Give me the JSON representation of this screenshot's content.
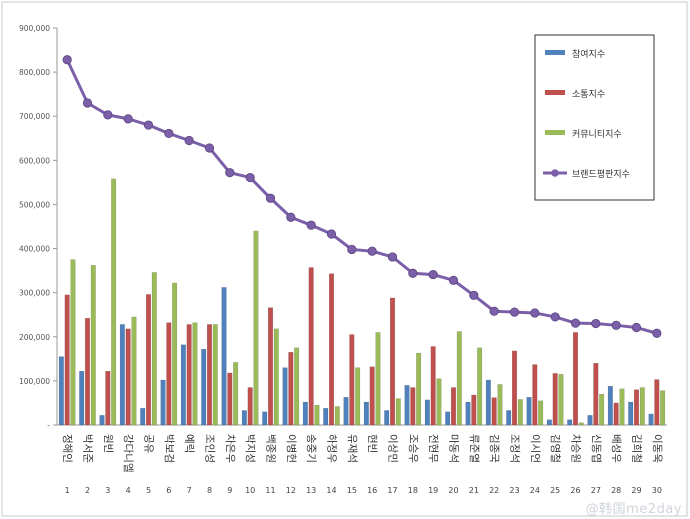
{
  "chart_data": {
    "type": "bar",
    "categories": [
      "정해인",
      "박서준",
      "원빈",
      "강다니엘",
      "공유",
      "박보검",
      "예릭",
      "조인성",
      "차은우",
      "박지성",
      "백종원",
      "이병헌",
      "송중기",
      "하정우",
      "유재석",
      "현빈",
      "이상민",
      "조승우",
      "전현무",
      "마동석",
      "류준열",
      "김종국",
      "조정석",
      "이시언",
      "김영철",
      "차승원",
      "신동엽",
      "배성우",
      "김희철",
      "이동욱"
    ],
    "ranks": [
      "1",
      "2",
      "3",
      "4",
      "5",
      "6",
      "7",
      "8",
      "9",
      "10",
      "11",
      "12",
      "13",
      "14",
      "15",
      "16",
      "17",
      "18",
      "19",
      "20",
      "21",
      "22",
      "23",
      "24",
      "25",
      "26",
      "27",
      "28",
      "29",
      "30"
    ],
    "ylim": [
      0,
      900000
    ],
    "yticks": [
      "-",
      "100,000",
      "200,000",
      "300,000",
      "400,000",
      "500,000",
      "600,000",
      "700,000",
      "800,000",
      "900,000"
    ],
    "series": [
      {
        "name": "참여지수",
        "kind": "bar",
        "color": "#4f81bd",
        "values": [
          155000,
          122000,
          22000,
          228000,
          38000,
          102000,
          182000,
          172000,
          312000,
          33000,
          30000,
          130000,
          52000,
          38000,
          63000,
          52000,
          33000,
          90000,
          57000,
          30000,
          52000,
          102000,
          33000,
          63000,
          12000,
          12000,
          22000,
          88000,
          52000,
          25000
        ]
      },
      {
        "name": "소통지수",
        "kind": "bar",
        "color": "#c0504d",
        "values": [
          295000,
          242000,
          122000,
          218000,
          296000,
          232000,
          228000,
          228000,
          118000,
          85000,
          266000,
          165000,
          357000,
          343000,
          205000,
          132000,
          288000,
          85000,
          178000,
          85000,
          68000,
          62000,
          168000,
          137000,
          117000,
          210000,
          140000,
          50000,
          80000,
          103000
        ]
      },
      {
        "name": "커뮤니티지수",
        "kind": "bar",
        "color": "#9bbb59",
        "values": [
          375000,
          362000,
          558000,
          245000,
          346000,
          322000,
          232000,
          228000,
          142000,
          440000,
          218000,
          175000,
          45000,
          42000,
          130000,
          210000,
          60000,
          163000,
          105000,
          212000,
          175000,
          92000,
          58000,
          55000,
          115000,
          5000,
          70000,
          82000,
          85000,
          78000
        ]
      },
      {
        "name": "브랜드평판지수",
        "kind": "line",
        "color": "#7b5fa8",
        "values": [
          828000,
          730000,
          703000,
          694000,
          680000,
          661000,
          645000,
          628000,
          572000,
          561000,
          514000,
          471000,
          453000,
          433000,
          398000,
          394000,
          381000,
          344000,
          341000,
          328000,
          294000,
          258000,
          256000,
          254000,
          245000,
          231000,
          230000,
          226000,
          221000,
          208000
        ]
      }
    ],
    "legend": "top-right",
    "grid": false
  },
  "watermark": "@韩国me2day"
}
